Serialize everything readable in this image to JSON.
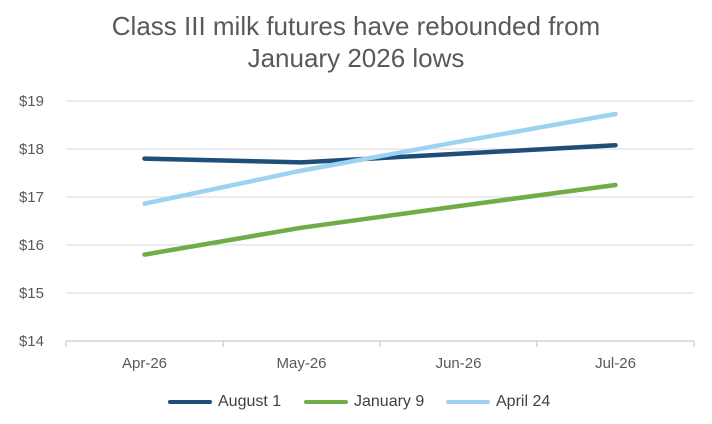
{
  "chart_data": {
    "type": "line",
    "title_lines": [
      "Class III milk futures have rebounded from",
      "January 2026 lows"
    ],
    "categories": [
      "Apr-26",
      "May-26",
      "Jun-26",
      "Jul-26"
    ],
    "y_ticks": [
      "$14",
      "$15",
      "$16",
      "$17",
      "$18",
      "$19"
    ],
    "ylim": [
      14,
      19
    ],
    "grid": true,
    "legend_position": "bottom",
    "series": [
      {
        "name": "August 1",
        "color": "#1f4e79",
        "values": [
          17.8,
          17.72,
          17.9,
          18.08
        ]
      },
      {
        "name": "January 9",
        "color": "#70ad47",
        "values": [
          15.8,
          16.36,
          16.81,
          17.25
        ]
      },
      {
        "name": "April 24",
        "color": "#9dd3f0",
        "values": [
          16.86,
          17.55,
          18.15,
          18.73
        ]
      }
    ]
  }
}
